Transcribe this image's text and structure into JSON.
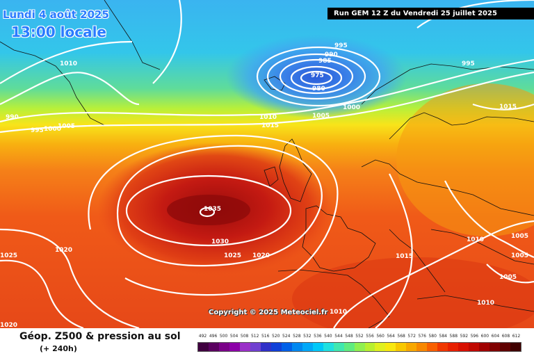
{
  "header": {
    "date": "Lundi 4 août 2025",
    "local_time": "13:00 locale",
    "run_info": "Run GEM 12 Z du Vendredi 25 juillet 2025"
  },
  "footer": {
    "title": "Géop. Z500 & pression au sol",
    "lead_time": "(+ 240h)",
    "copyright": "Copyright © 2025 Meteociel.fr"
  },
  "legend": {
    "values": [
      "492",
      "496",
      "500",
      "504",
      "508",
      "512",
      "516",
      "520",
      "524",
      "528",
      "532",
      "536",
      "540",
      "544",
      "548",
      "552",
      "556",
      "560",
      "564",
      "568",
      "572",
      "576",
      "580",
      "584",
      "588",
      "592",
      "596",
      "600",
      "604",
      "608",
      "612"
    ],
    "colors": [
      "#400040",
      "#5a0060",
      "#7a0088",
      "#8c00a8",
      "#9a30c8",
      "#7040d0",
      "#3030c8",
      "#1040d8",
      "#0060e8",
      "#0088f0",
      "#00a8f8",
      "#00c8f8",
      "#20e0e0",
      "#40e8b0",
      "#60ec80",
      "#90f050",
      "#b8f030",
      "#e0f020",
      "#f8e810",
      "#f8c800",
      "#f8a800",
      "#f88800",
      "#f86000",
      "#f03800",
      "#e82000",
      "#d81000",
      "#c00800",
      "#a00000",
      "#800000",
      "#600000",
      "#400000"
    ]
  },
  "map": {
    "high_center": "1035",
    "low_center": "975",
    "isobar_labels": [
      "980",
      "985",
      "990",
      "995",
      "1000",
      "1005",
      "1010",
      "1015",
      "1020",
      "1025",
      "1030",
      "1035"
    ]
  }
}
